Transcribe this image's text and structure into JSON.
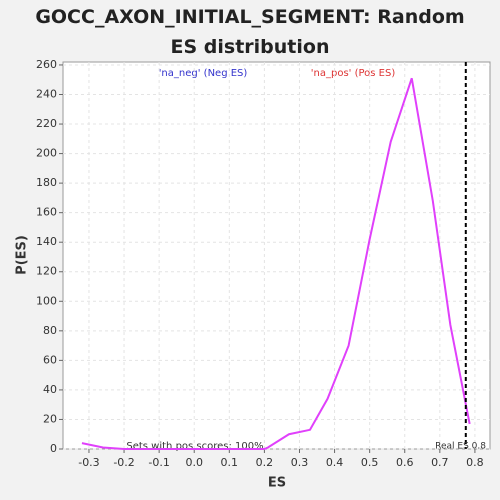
{
  "chart_data": {
    "type": "line",
    "title": "GOCC_AXON_INITIAL_SEGMENT: Random ES distribution",
    "x_label": "ES",
    "y_label": "P(ES)",
    "x": [
      -0.32,
      -0.26,
      -0.2,
      -0.1,
      0.0,
      0.1,
      0.2,
      0.21,
      0.27,
      0.33,
      0.38,
      0.44,
      0.5,
      0.56,
      0.62,
      0.68,
      0.73,
      0.785
    ],
    "series": [
      {
        "color": "#e040fb",
        "values": [
          4,
          1,
          0,
          0,
          0,
          0,
          0,
          1,
          10,
          13,
          34,
          70,
          142,
          208,
          251,
          168,
          84,
          17
        ]
      }
    ],
    "xlim": [
      -0.374,
      0.843
    ],
    "ylim": [
      0,
      262
    ],
    "xticks": [
      -0.3,
      -0.2,
      -0.1,
      {
        "value": 0,
        "label": "0.0"
      },
      0.1,
      0.2,
      0.3,
      0.4,
      0.5,
      0.6,
      0.7,
      0.8
    ],
    "yticks": [
      0,
      20,
      40,
      60,
      80,
      100,
      120,
      140,
      160,
      180,
      200,
      220,
      240,
      260
    ],
    "grid": true,
    "neg_label": "'na_neg' (Neg ES)",
    "pos_label": "'na_pos' (Pos ES)",
    "footnote": "Sets with pos scores: 100%",
    "real_es": {
      "value": 0.774,
      "label": "Real ES 0.8"
    }
  }
}
